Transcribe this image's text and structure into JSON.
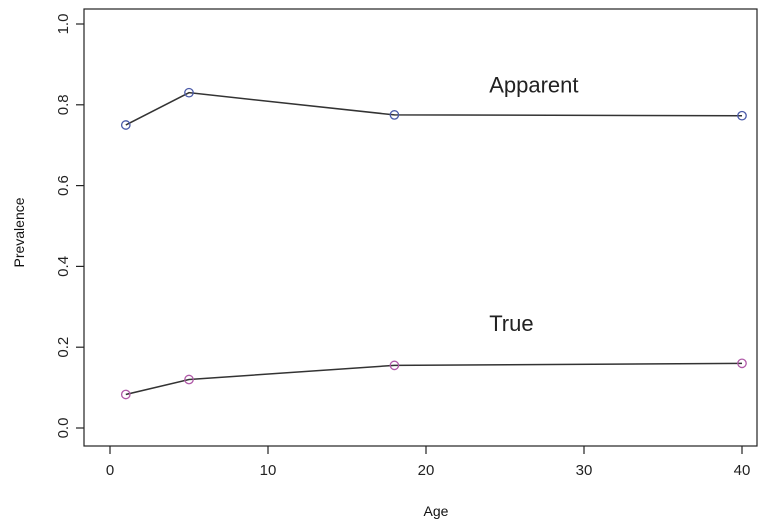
{
  "chart_data": {
    "type": "line",
    "xlabel": "Age",
    "ylabel": "Prevalence",
    "xlim": [
      0,
      40
    ],
    "ylim": [
      0,
      1
    ],
    "x_ticks": [
      "0",
      "10",
      "20",
      "30",
      "40"
    ],
    "y_ticks": [
      "0.0",
      "0.2",
      "0.4",
      "0.6",
      "0.8",
      "1.0"
    ],
    "grid": false,
    "legend": "none",
    "series": [
      {
        "name": "Apparent",
        "color": "#4a5aa8",
        "x": [
          1,
          5,
          18,
          40
        ],
        "y": [
          0.75,
          0.83,
          0.775,
          0.773
        ]
      },
      {
        "name": "True",
        "color": "#b05aa8",
        "x": [
          1,
          5,
          18,
          40
        ],
        "y": [
          0.083,
          0.12,
          0.155,
          0.16
        ]
      }
    ],
    "annotations": [
      {
        "text": "Apparent",
        "x": 24,
        "y": 0.83
      },
      {
        "text": "True",
        "x": 24,
        "y": 0.24
      }
    ]
  }
}
